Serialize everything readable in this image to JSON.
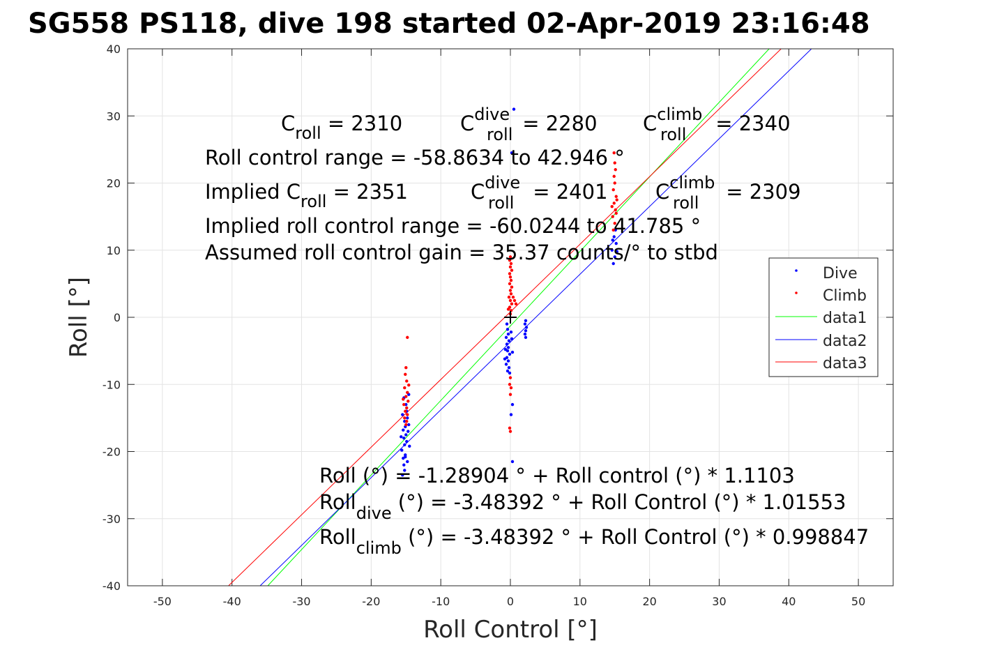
{
  "chart_data": {
    "type": "scatter",
    "title": "SG558 PS118, dive 198 started 02-Apr-2019 23:16:48",
    "xlabel": "Roll Control [°]",
    "ylabel": "Roll [°]",
    "xlim": [
      -55,
      55
    ],
    "ylim": [
      -40,
      40
    ],
    "xticks": [
      -50,
      -40,
      -30,
      -20,
      -10,
      0,
      10,
      20,
      30,
      40,
      50
    ],
    "yticks": [
      -40,
      -30,
      -20,
      -10,
      0,
      10,
      20,
      30,
      40
    ],
    "xtick_labels": [
      "-50",
      "-40",
      "-30",
      "-20",
      "-10",
      "0",
      "10",
      "20",
      "30",
      "40",
      "50"
    ],
    "ytick_labels": [
      "-40",
      "-30",
      "-20",
      "-10",
      "0",
      "10",
      "20",
      "30",
      "40"
    ],
    "grid": true,
    "legend_position": "right",
    "series": [
      {
        "name": "Dive",
        "kind": "scatter",
        "color": "#0000ff",
        "points": [
          [
            -15.5,
            -23.5
          ],
          [
            -15.3,
            -22
          ],
          [
            -15.4,
            -21
          ],
          [
            -15.1,
            -20.5
          ],
          [
            -15.6,
            -19.8
          ],
          [
            -15.2,
            -19
          ],
          [
            -14.9,
            -18.5
          ],
          [
            -15.3,
            -18
          ],
          [
            -15.0,
            -17.5
          ],
          [
            -14.7,
            -17
          ],
          [
            -15.4,
            -16.8
          ],
          [
            -15.1,
            -16.3
          ],
          [
            -14.6,
            -16
          ],
          [
            -15.2,
            -15.5
          ],
          [
            -14.8,
            -15
          ],
          [
            -15.5,
            -14.5
          ],
          [
            -14.9,
            -14
          ],
          [
            -15.0,
            -13
          ],
          [
            -15.3,
            -12
          ],
          [
            -14.6,
            -11.5
          ],
          [
            -15.1,
            -20.8
          ],
          [
            -14.8,
            -21.5
          ],
          [
            -15.2,
            -22.8
          ],
          [
            -14.5,
            -19.2
          ],
          [
            -15.7,
            -17.8
          ],
          [
            -0.5,
            -1
          ],
          [
            -0.4,
            -1.8
          ],
          [
            -0.3,
            -2.5
          ],
          [
            -0.6,
            -3
          ],
          [
            -0.2,
            -3.5
          ],
          [
            -0.5,
            -4
          ],
          [
            -0.3,
            -4.5
          ],
          [
            -0.4,
            -5
          ],
          [
            -0.1,
            -5.5
          ],
          [
            -0.5,
            -6
          ],
          [
            -0.3,
            -6.5
          ],
          [
            -0.6,
            -7
          ],
          [
            -0.2,
            -7.5
          ],
          [
            -0.4,
            -8
          ],
          [
            -0.1,
            -8.3
          ],
          [
            -0.7,
            -4.8
          ],
          [
            0.2,
            -3.2
          ],
          [
            0.3,
            -5.2
          ],
          [
            0.1,
            -2.2
          ],
          [
            -0.8,
            -6.2
          ],
          [
            0.3,
            -13
          ],
          [
            0.1,
            -14.5
          ],
          [
            0.3,
            -21.5
          ],
          [
            0.5,
            31
          ],
          [
            0.2,
            24.5
          ],
          [
            2.2,
            -0.5
          ],
          [
            2.1,
            -1
          ],
          [
            2.3,
            -1.5
          ],
          [
            2.2,
            -2
          ],
          [
            2.1,
            -2.5
          ],
          [
            2.2,
            -3
          ],
          [
            14.8,
            8
          ],
          [
            15.0,
            9
          ],
          [
            14.6,
            10
          ],
          [
            15.2,
            11
          ],
          [
            14.9,
            12
          ],
          [
            15.1,
            13
          ],
          [
            14.7,
            11.5
          ],
          [
            15.3,
            9.8
          ]
        ]
      },
      {
        "name": "Climb",
        "kind": "scatter",
        "color": "#ff0000",
        "points": [
          [
            -14.8,
            -3
          ],
          [
            -15.0,
            -7.5
          ],
          [
            -15.1,
            -8.5
          ],
          [
            -14.9,
            -9.5
          ],
          [
            -15.2,
            -10.5
          ],
          [
            -14.8,
            -11.2
          ],
          [
            -15.0,
            -11.8
          ],
          [
            -14.7,
            -12.5
          ],
          [
            -15.3,
            -13
          ],
          [
            -14.9,
            -13.5
          ],
          [
            -15.1,
            -14
          ],
          [
            -14.8,
            -14.5
          ],
          [
            -15.2,
            -15
          ],
          [
            -14.9,
            -15.5
          ],
          [
            -15.0,
            -16
          ],
          [
            -15.4,
            -12.2
          ],
          [
            -14.6,
            -10.1
          ],
          [
            0.0,
            0.5
          ],
          [
            0.1,
            1
          ],
          [
            -0.1,
            1.5
          ],
          [
            0.2,
            2
          ],
          [
            0.0,
            2.5
          ],
          [
            -0.2,
            3
          ],
          [
            0.1,
            3.5
          ],
          [
            0.0,
            4
          ],
          [
            0.2,
            4.5
          ],
          [
            -0.1,
            5
          ],
          [
            0.1,
            5.5
          ],
          [
            0.0,
            6
          ],
          [
            -0.1,
            6.5
          ],
          [
            0.2,
            7
          ],
          [
            0.0,
            7.5
          ],
          [
            0.1,
            8
          ],
          [
            -0.1,
            8.5
          ],
          [
            0.0,
            9
          ],
          [
            0.4,
            3
          ],
          [
            0.6,
            2.5
          ],
          [
            0.8,
            2
          ],
          [
            -0.3,
            1.2
          ],
          [
            0.0,
            -9
          ],
          [
            -0.1,
            -10
          ],
          [
            0.1,
            -10.5
          ],
          [
            0.0,
            -11.5
          ],
          [
            -0.1,
            -16.5
          ],
          [
            0.0,
            -17
          ],
          [
            14.8,
            13
          ],
          [
            15.0,
            14
          ],
          [
            14.7,
            15
          ],
          [
            15.1,
            16
          ],
          [
            14.9,
            17
          ],
          [
            15.2,
            18
          ],
          [
            14.8,
            19
          ],
          [
            15.0,
            20
          ],
          [
            14.9,
            21
          ],
          [
            15.1,
            22
          ],
          [
            15.0,
            23
          ],
          [
            14.9,
            24.5
          ],
          [
            15.2,
            15.5
          ],
          [
            14.6,
            16.5
          ],
          [
            15.3,
            17.5
          ]
        ]
      },
      {
        "name": "data1",
        "kind": "line",
        "color": "#00ff00",
        "points": [
          [
            -34.86,
            -40
          ],
          [
            37.18,
            40
          ]
        ]
      },
      {
        "name": "data2",
        "kind": "line",
        "color": "#0000ff",
        "points": [
          [
            -35.96,
            -40
          ],
          [
            43.26,
            40
          ]
        ]
      },
      {
        "name": "data3",
        "kind": "line",
        "color": "#ff0000",
        "points": [
          [
            -40.5,
            -40
          ],
          [
            38.9,
            40
          ]
        ]
      }
    ],
    "marker": {
      "symbol": "+",
      "x": 0,
      "y": 0,
      "color": "#000000"
    },
    "annotations": {
      "line1": {
        "c": "C",
        "sub": "roll",
        "val": " = 2310",
        "cd": "C",
        "cd_sup": "dive",
        "cd_sub": "roll",
        "cd_val": " = 2280",
        "cc": "C",
        "cc_sup": "climb",
        "cc_sub": "roll",
        "cc_val": " = 2340"
      },
      "range": "Roll control range = -58.8634 to 42.946 °",
      "line3": {
        "implied": "Implied C",
        "sub": "roll",
        "val": " = 2351",
        "cd": "C",
        "cd_sup": "dive",
        "cd_sub": "roll",
        "cd_val": " = 2401",
        "cc": "C",
        "cc_sup": "climb",
        "cc_sub": "roll",
        "cc_val": " = 2309"
      },
      "implied_range": "Implied roll control range = -60.0244 to 41.785 °",
      "gain": "Assumed roll control gain = 35.37 counts/° to stbd",
      "fit": "Roll (°) = -1.28904 ° + Roll control (°) * 1.1103",
      "fit_dive": {
        "lead": "Roll",
        "sub": "dive",
        "rest": " (°) = -3.48392 ° + Roll Control (°) * 1.01553"
      },
      "fit_climb": {
        "lead": "Roll",
        "sub": "climb",
        "rest": " (°) = -3.48392 ° + Roll Control (°) * 0.998847"
      }
    }
  }
}
